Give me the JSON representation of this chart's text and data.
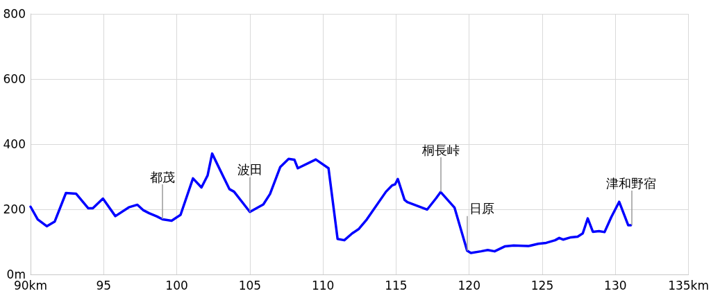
{
  "chart_data": {
    "type": "line",
    "color": "#0000ff",
    "marker": "none",
    "line_style": "solid",
    "grid": true,
    "x": [
      90,
      90.49,
      91.11,
      91.65,
      92.42,
      93.11,
      93.95,
      94.26,
      94.95,
      95.8,
      96.72,
      97.31,
      97.72,
      98.11,
      98.65,
      99.03,
      99.65,
      100.26,
      101.11,
      101.69,
      102.11,
      102.42,
      103.6,
      103.92,
      105,
      105.92,
      106.38,
      107.08,
      107.65,
      108.05,
      108.28,
      109.51,
      110.38,
      111,
      111.46,
      112,
      112.46,
      113,
      114.31,
      114.72,
      114.94,
      115.12,
      115.58,
      115.77,
      117.12,
      117.74,
      118.05,
      119,
      119.86,
      120.12,
      120.81,
      121.27,
      121.74,
      122.43,
      123.04,
      124.04,
      124.73,
      125.27,
      125.88,
      126.16,
      126.42,
      126.96,
      127.42,
      127.77,
      128.11,
      128.46,
      128.88,
      129.26,
      129.72,
      130.26,
      130.88,
      131.06
    ],
    "values": [
      208,
      169,
      148,
      162,
      250,
      248,
      203,
      203,
      233,
      179,
      206,
      214,
      197,
      188,
      178,
      169,
      165,
      183,
      295,
      267,
      304,
      371,
      262,
      254,
      192,
      215,
      247,
      330,
      355,
      352,
      326,
      353,
      326,
      109,
      105,
      126,
      140,
      169,
      254,
      273,
      277,
      293,
      229,
      222,
      199,
      234,
      253,
      205,
      73,
      66,
      71,
      75,
      71,
      86,
      89,
      87,
      94,
      97,
      105,
      112,
      107,
      114,
      116,
      126,
      172,
      131,
      133,
      130,
      176,
      223,
      151,
      151
    ],
    "xlim": [
      90,
      135
    ],
    "xticks": [
      {
        "value": 90,
        "label": "90km"
      },
      95,
      100,
      105,
      110,
      115,
      120,
      125,
      130,
      {
        "value": 135,
        "label": "135km"
      }
    ],
    "ylim": [
      0,
      800
    ],
    "yticks": [
      {
        "value": 0,
        "label": "0m"
      },
      200,
      400,
      600,
      800
    ],
    "annotations": [
      {
        "text": "都茂",
        "x": 99,
        "y": 170
      },
      {
        "text": "波田",
        "x": 105,
        "y": 192
      },
      {
        "text": "桐長峠",
        "x": 118.05,
        "y": 253
      },
      {
        "text": "日原",
        "x": 119.86,
        "y": 73
      },
      {
        "text": "津和野宿",
        "x": 131.1,
        "y": 151
      }
    ]
  }
}
